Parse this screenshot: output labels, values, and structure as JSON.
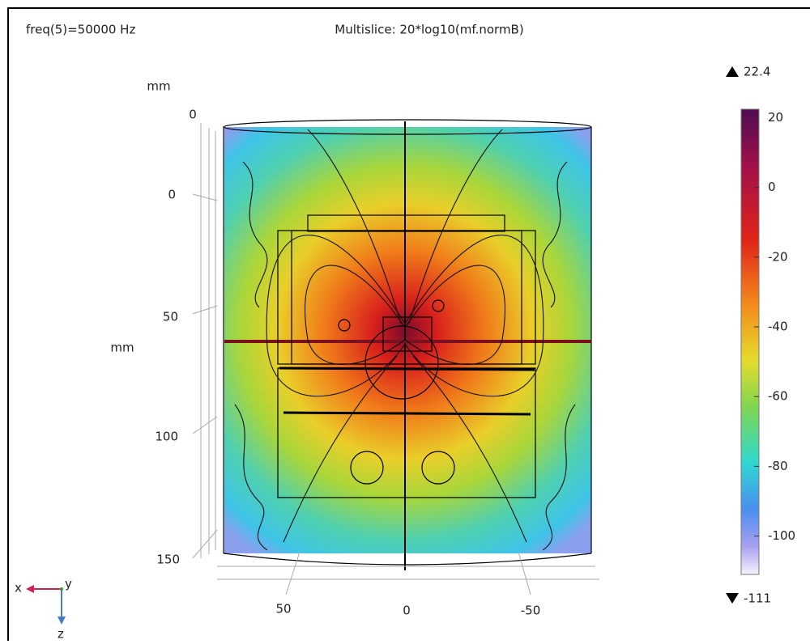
{
  "header": {
    "parameter": "freq(5)=50000 Hz",
    "title": "Multislice: 20*log10(mf.normB)"
  },
  "colorbar": {
    "max": 22.4,
    "min": -111,
    "ticks": [
      20,
      0,
      -20,
      -40,
      -60,
      -80,
      -100
    ]
  },
  "axes": {
    "depth": {
      "unit": "mm",
      "ticks": [
        0
      ]
    },
    "vertical": {
      "unit": "mm",
      "ticks": [
        0,
        50,
        100,
        150
      ]
    },
    "horizontal": {
      "ticks": [
        50,
        0,
        -50
      ]
    }
  },
  "triad": {
    "x": "x",
    "y": "y",
    "z": "z"
  }
}
